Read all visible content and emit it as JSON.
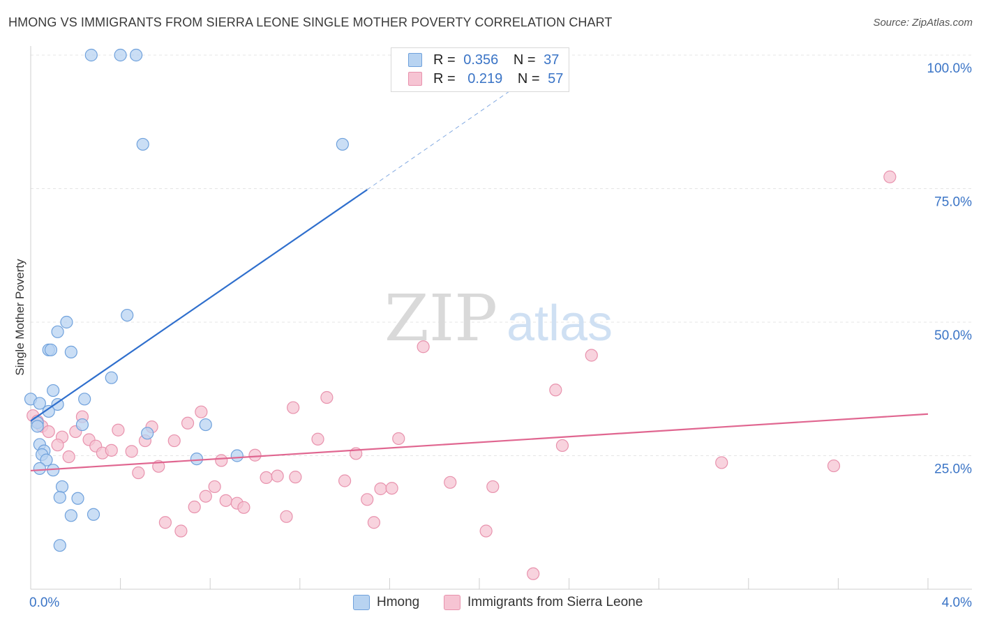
{
  "title": "HMONG VS IMMIGRANTS FROM SIERRA LEONE SINGLE MOTHER POVERTY CORRELATION CHART",
  "source": "Source: ZipAtlas.com",
  "watermark": {
    "zip": "ZIP",
    "atlas": "atlas"
  },
  "legend_top": {
    "rows": [
      {
        "r_label": "R =",
        "r_value": "0.356",
        "n_label": "N =",
        "n_value": "37"
      },
      {
        "r_label": "R =",
        "r_value": "0.219",
        "n_label": "N =",
        "n_value": "57"
      }
    ]
  },
  "colors": {
    "hmong_fill": "#b8d3f1",
    "hmong_stroke": "#6fa1dc",
    "hmong_line": "#2f6fcd",
    "sl_fill": "#f6c4d3",
    "sl_stroke": "#e892ad",
    "sl_line": "#e06690",
    "grid": "#e4e4e4",
    "axis_label": "#3a74c6"
  },
  "chart_data": {
    "type": "scatter",
    "title": "HMONG VS IMMIGRANTS FROM SIERRA LEONE SINGLE MOTHER POVERTY CORRELATION CHART",
    "xlabel": "",
    "ylabel": "Single Mother Poverty",
    "xlim": [
      0,
      4.0
    ],
    "ylim": [
      0,
      100
    ],
    "x_ticks": [
      "0.0%",
      "4.0%"
    ],
    "y_ticks": [
      "25.0%",
      "50.0%",
      "75.0%",
      "100.0%"
    ],
    "y_tick_values": [
      25,
      50,
      75,
      100
    ],
    "grid": true,
    "legend_position": "top-center",
    "series": [
      {
        "name": "Hmong",
        "r": 0.356,
        "n": 37,
        "trend": {
          "x0": 0.0,
          "y0": 31.5,
          "x1": 1.5,
          "y1": 74.8,
          "dashed_to_x": 2.35,
          "dashed_to_y": 99.5
        },
        "points": [
          [
            0.27,
            100
          ],
          [
            0.4,
            100
          ],
          [
            0.47,
            100
          ],
          [
            0.5,
            83.3
          ],
          [
            1.39,
            83.3
          ],
          [
            0.43,
            51.3
          ],
          [
            0.16,
            50.0
          ],
          [
            0.12,
            48.2
          ],
          [
            0.08,
            44.8
          ],
          [
            0.09,
            44.8
          ],
          [
            0.18,
            44.4
          ],
          [
            0.36,
            39.6
          ],
          [
            0.1,
            37.2
          ],
          [
            0.0,
            35.6
          ],
          [
            0.24,
            35.6
          ],
          [
            0.12,
            34.6
          ],
          [
            0.04,
            34.8
          ],
          [
            0.08,
            33.3
          ],
          [
            0.03,
            31.2
          ],
          [
            0.23,
            30.8
          ],
          [
            0.78,
            30.8
          ],
          [
            0.52,
            29.2
          ],
          [
            0.04,
            27.1
          ],
          [
            0.06,
            25.9
          ],
          [
            0.05,
            25.2
          ],
          [
            0.07,
            24.2
          ],
          [
            0.04,
            22.6
          ],
          [
            0.1,
            22.3
          ],
          [
            0.14,
            19.2
          ],
          [
            0.13,
            17.2
          ],
          [
            0.21,
            17.0
          ],
          [
            0.18,
            13.8
          ],
          [
            0.28,
            14.0
          ],
          [
            0.13,
            8.2
          ],
          [
            0.74,
            24.4
          ],
          [
            0.92,
            25.0
          ],
          [
            0.03,
            30.5
          ]
        ]
      },
      {
        "name": "Immigrants from Sierra Leone",
        "r": 0.219,
        "n": 57,
        "trend": {
          "x0": 0.0,
          "y0": 22.2,
          "x1": 4.0,
          "y1": 32.8
        },
        "points": [
          [
            0.01,
            32.5
          ],
          [
            0.03,
            31.5
          ],
          [
            0.05,
            30.5
          ],
          [
            0.08,
            29.5
          ],
          [
            0.14,
            28.5
          ],
          [
            0.12,
            27.0
          ],
          [
            0.17,
            24.8
          ],
          [
            0.2,
            29.5
          ],
          [
            0.23,
            32.3
          ],
          [
            0.26,
            28.0
          ],
          [
            0.29,
            26.8
          ],
          [
            0.32,
            25.5
          ],
          [
            0.36,
            26.0
          ],
          [
            0.39,
            29.8
          ],
          [
            0.45,
            25.8
          ],
          [
            0.48,
            21.8
          ],
          [
            0.51,
            27.8
          ],
          [
            0.54,
            30.4
          ],
          [
            0.57,
            23.0
          ],
          [
            0.6,
            12.5
          ],
          [
            0.64,
            27.8
          ],
          [
            0.67,
            10.9
          ],
          [
            0.7,
            31.1
          ],
          [
            0.73,
            15.4
          ],
          [
            0.76,
            33.2
          ],
          [
            0.78,
            17.4
          ],
          [
            0.82,
            19.2
          ],
          [
            0.85,
            24.1
          ],
          [
            0.87,
            16.6
          ],
          [
            0.92,
            16.1
          ],
          [
            0.95,
            15.3
          ],
          [
            1.0,
            25.1
          ],
          [
            1.05,
            20.9
          ],
          [
            1.1,
            21.2
          ],
          [
            1.14,
            13.6
          ],
          [
            1.18,
            21.0
          ],
          [
            1.17,
            34.0
          ],
          [
            1.28,
            28.1
          ],
          [
            1.32,
            35.9
          ],
          [
            1.4,
            20.3
          ],
          [
            1.45,
            25.4
          ],
          [
            1.5,
            16.8
          ],
          [
            1.53,
            12.5
          ],
          [
            1.56,
            18.8
          ],
          [
            1.61,
            18.9
          ],
          [
            1.64,
            28.2
          ],
          [
            1.75,
            45.4
          ],
          [
            1.87,
            20.0
          ],
          [
            2.03,
            10.9
          ],
          [
            2.06,
            19.2
          ],
          [
            2.24,
            2.9
          ],
          [
            2.34,
            37.3
          ],
          [
            2.37,
            26.9
          ],
          [
            2.5,
            43.8
          ],
          [
            3.08,
            23.7
          ],
          [
            3.58,
            23.1
          ],
          [
            3.83,
            77.2
          ]
        ]
      }
    ]
  },
  "legend_bottom": {
    "items": [
      "Hmong",
      "Immigrants from Sierra Leone"
    ]
  }
}
